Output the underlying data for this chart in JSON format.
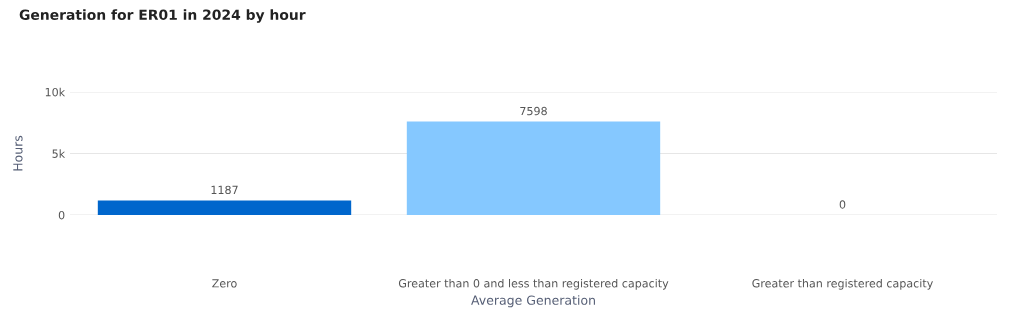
{
  "chart_data": {
    "type": "bar",
    "title": "Generation for ER01 in 2024 by hour",
    "xlabel": "Average Generation",
    "ylabel": "Hours",
    "categories": [
      "Zero",
      "Greater than 0 and less than registered capacity",
      "Greater than registered capacity"
    ],
    "values": [
      1187,
      7598,
      0
    ],
    "colors": [
      "#0066cc",
      "#85c8ff",
      "#85c8ff"
    ],
    "ylim": [
      0,
      10000
    ],
    "yticks": [
      0,
      {
        "value": 5000,
        "label": "5k"
      },
      {
        "value": 10000,
        "label": "10k"
      }
    ],
    "grid": "y",
    "data_labels": true
  }
}
